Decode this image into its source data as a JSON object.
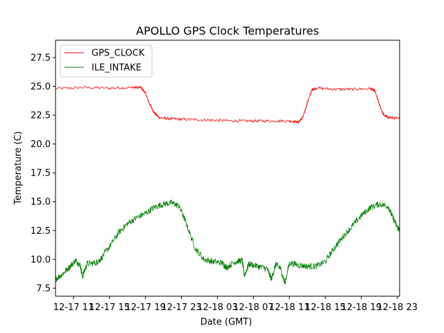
{
  "chart_data": {
    "type": "line",
    "title": "APOLLO GPS Clock Temperatures",
    "xlabel": "Date (GMT)",
    "ylabel": "Temperature (C)",
    "xlim": [
      "2023-12-17 09:00",
      "2023-12-18 23:15"
    ],
    "ylim": [
      6.8,
      29.0
    ],
    "yticks": [
      7.5,
      10.0,
      12.5,
      15.0,
      17.5,
      20.0,
      22.5,
      25.0,
      27.5
    ],
    "ytick_labels": [
      "7.5",
      "10.0",
      "12.5",
      "15.0",
      "17.5",
      "20.0",
      "22.5",
      "25.0",
      "27.5"
    ],
    "xticks": [
      "2023-12-17 11:00",
      "2023-12-17 15:00",
      "2023-12-17 19:00",
      "2023-12-17 23:00",
      "2023-12-18 03:00",
      "2023-12-18 07:00",
      "2023-12-18 11:00",
      "2023-12-18 15:00",
      "2023-12-18 19:00",
      "2023-12-18 23:00"
    ],
    "xtick_labels": [
      "12-17 11",
      "12-17 15",
      "12-17 19",
      "12-17 23",
      "12-18 03",
      "12-18 07",
      "12-18 11",
      "12-18 15",
      "12-18 19",
      "12-18 23"
    ],
    "legend_position": "top-left",
    "grid": false,
    "series": [
      {
        "name": "GPS_CLOCK",
        "color": "#ff0000",
        "x": [
          "2023-12-17 09:00",
          "2023-12-17 12:00",
          "2023-12-17 15:00",
          "2023-12-17 17:30",
          "2023-12-17 18:30",
          "2023-12-17 19:00",
          "2023-12-17 19:30",
          "2023-12-17 20:00",
          "2023-12-17 20:30",
          "2023-12-17 21:30",
          "2023-12-17 23:00",
          "2023-12-18 01:00",
          "2023-12-18 03:00",
          "2023-12-18 05:00",
          "2023-12-18 07:00",
          "2023-12-18 09:00",
          "2023-12-18 11:00",
          "2023-12-18 12:00",
          "2023-12-18 12:30",
          "2023-12-18 13:00",
          "2023-12-18 13:30",
          "2023-12-18 14:00",
          "2023-12-18 16:00",
          "2023-12-18 18:00",
          "2023-12-18 20:00",
          "2023-12-18 20:30",
          "2023-12-18 21:00",
          "2023-12-18 21:30",
          "2023-12-18 22:00",
          "2023-12-18 23:15"
        ],
        "y": [
          24.8,
          24.9,
          24.85,
          24.9,
          24.9,
          24.4,
          23.4,
          22.7,
          22.3,
          22.2,
          22.15,
          22.1,
          22.05,
          22.0,
          22.0,
          22.0,
          22.0,
          21.9,
          22.3,
          23.6,
          24.7,
          24.85,
          24.75,
          24.75,
          24.8,
          24.6,
          23.4,
          22.5,
          22.3,
          22.2
        ]
      },
      {
        "name": "ILE_INTAKE",
        "color": "#008000",
        "x": [
          "2023-12-17 09:00",
          "2023-12-17 09:45",
          "2023-12-17 10:30",
          "2023-12-17 11:15",
          "2023-12-17 11:45",
          "2023-12-17 12:00",
          "2023-12-17 12:30",
          "2023-12-17 13:30",
          "2023-12-17 14:00",
          "2023-12-17 15:00",
          "2023-12-17 16:00",
          "2023-12-17 17:00",
          "2023-12-17 18:00",
          "2023-12-17 19:00",
          "2023-12-17 20:00",
          "2023-12-17 21:00",
          "2023-12-17 22:00",
          "2023-12-17 22:45",
          "2023-12-17 23:30",
          "2023-12-18 00:30",
          "2023-12-18 01:30",
          "2023-12-18 02:30",
          "2023-12-18 03:30",
          "2023-12-18 04:00",
          "2023-12-18 05:00",
          "2023-12-18 05:45",
          "2023-12-18 06:00",
          "2023-12-18 06:30",
          "2023-12-18 07:30",
          "2023-12-18 08:30",
          "2023-12-18 09:00",
          "2023-12-18 09:30",
          "2023-12-18 10:00",
          "2023-12-18 10:30",
          "2023-12-18 11:00",
          "2023-12-18 12:00",
          "2023-12-18 13:00",
          "2023-12-18 14:00",
          "2023-12-18 15:00",
          "2023-12-18 16:00",
          "2023-12-18 17:00",
          "2023-12-18 18:00",
          "2023-12-18 19:00",
          "2023-12-18 20:00",
          "2023-12-18 21:00",
          "2023-12-18 22:00",
          "2023-12-18 22:30",
          "2023-12-18 23:00",
          "2023-12-18 23:15"
        ],
        "y": [
          8.3,
          8.7,
          9.3,
          9.9,
          9.5,
          8.5,
          9.6,
          9.7,
          10.0,
          11.1,
          12.3,
          13.1,
          13.6,
          14.0,
          14.5,
          14.8,
          14.9,
          14.6,
          13.2,
          11.0,
          10.0,
          9.8,
          9.7,
          9.3,
          9.8,
          9.9,
          8.6,
          9.6,
          9.4,
          9.2,
          8.3,
          9.6,
          9.2,
          7.9,
          9.7,
          9.5,
          9.4,
          9.4,
          9.8,
          11.0,
          12.0,
          12.9,
          13.8,
          14.5,
          14.8,
          14.6,
          13.6,
          12.8,
          12.5
        ]
      }
    ]
  }
}
